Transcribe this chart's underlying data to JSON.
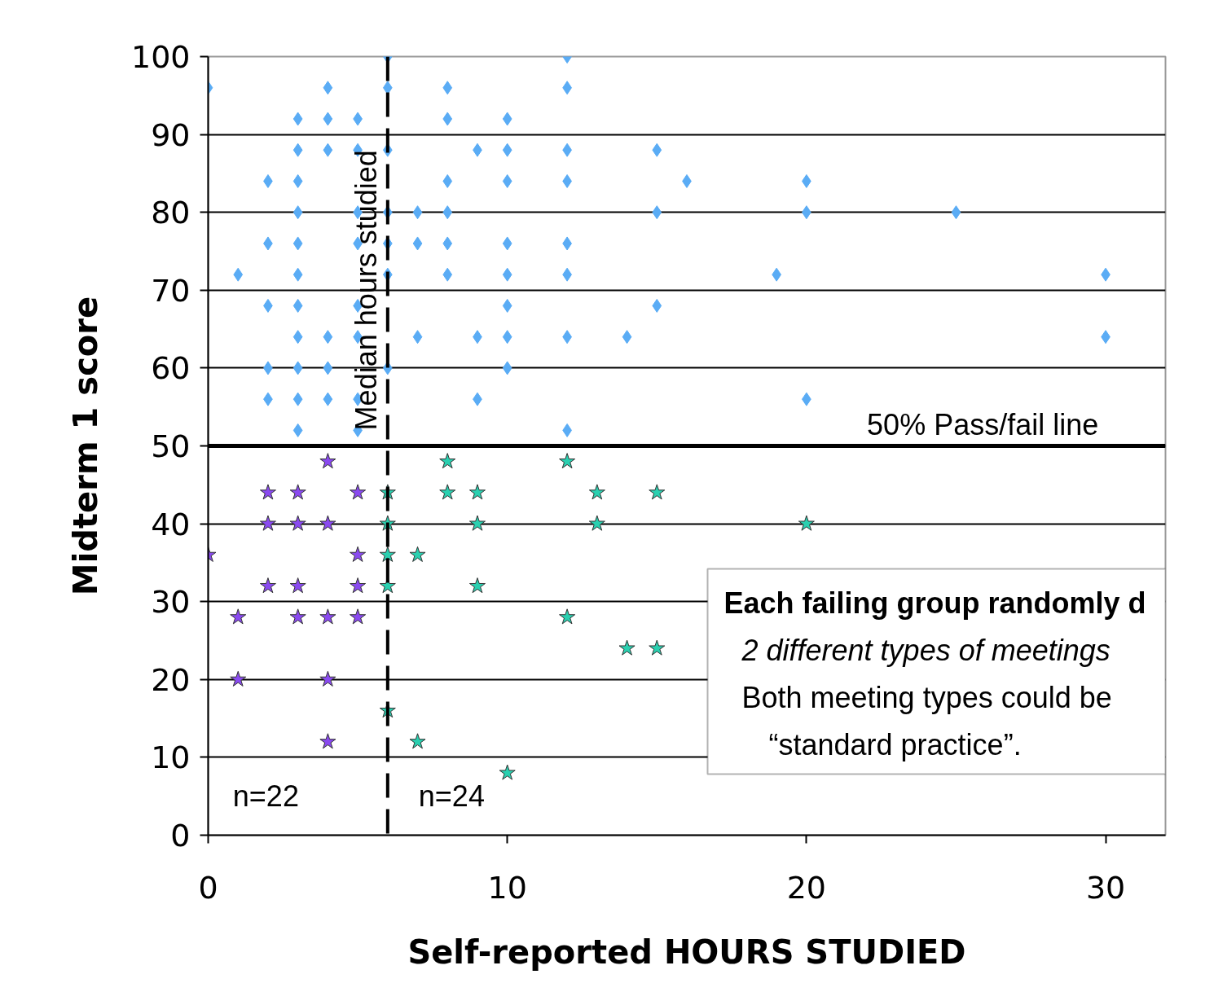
{
  "chart_data": {
    "type": "scatter",
    "xlabel": "Self-reported HOURS STUDIED",
    "ylabel": "Midterm 1 score",
    "xlim": [
      0,
      32
    ],
    "xticks": [
      0,
      10,
      20,
      30
    ],
    "ylim": [
      0,
      100
    ],
    "yticks": [
      0,
      10,
      20,
      30,
      40,
      50,
      60,
      70,
      80,
      90,
      100
    ],
    "grid": "y",
    "series": [
      {
        "color": "#5aacf5",
        "marker": "diamond",
        "x": [
          0,
          1,
          2,
          2,
          2,
          2,
          2,
          3,
          3,
          3,
          3,
          3,
          3,
          3,
          3,
          3,
          3,
          3,
          4,
          4,
          4,
          4,
          4,
          4,
          5,
          5,
          5,
          5,
          5,
          5,
          5,
          5,
          6,
          6,
          6,
          6,
          6,
          6,
          6,
          7,
          7,
          7,
          8,
          8,
          8,
          8,
          8,
          8,
          9,
          9,
          9,
          10,
          10,
          10,
          10,
          10,
          10,
          10,
          10,
          12,
          12,
          12,
          12,
          12,
          12,
          12,
          12,
          14,
          15,
          15,
          15,
          16,
          19,
          20,
          20,
          20,
          25,
          30,
          30
        ],
        "values": [
          96,
          72,
          84,
          76,
          68,
          60,
          56,
          92,
          88,
          84,
          80,
          76,
          72,
          68,
          64,
          60,
          56,
          52,
          96,
          92,
          88,
          64,
          60,
          56,
          92,
          88,
          80,
          76,
          68,
          64,
          56,
          52,
          100,
          96,
          88,
          80,
          76,
          72,
          60,
          80,
          76,
          64,
          96,
          92,
          84,
          80,
          76,
          72,
          88,
          64,
          56,
          92,
          88,
          84,
          76,
          72,
          68,
          64,
          60,
          100,
          96,
          88,
          84,
          76,
          72,
          64,
          52,
          64,
          88,
          80,
          68,
          84,
          72,
          84,
          80,
          56,
          80,
          72,
          64
        ]
      },
      {
        "color": "#8a4af0",
        "marker": "star",
        "x": [
          0,
          1,
          1,
          2,
          2,
          2,
          3,
          3,
          3,
          3,
          4,
          4,
          4,
          4,
          4,
          5,
          5,
          5,
          5
        ],
        "values": [
          36,
          28,
          20,
          44,
          40,
          32,
          44,
          40,
          32,
          28,
          48,
          40,
          28,
          20,
          12,
          44,
          36,
          32,
          28
        ]
      },
      {
        "color": "#2ad0b0",
        "marker": "star",
        "x": [
          6,
          6,
          6,
          6,
          6,
          7,
          7,
          8,
          8,
          9,
          9,
          9,
          10,
          12,
          12,
          13,
          13,
          14,
          15,
          15,
          20
        ],
        "values": [
          44,
          40,
          36,
          32,
          16,
          36,
          12,
          48,
          44,
          44,
          40,
          32,
          8,
          48,
          28,
          44,
          40,
          24,
          44,
          24,
          40
        ]
      }
    ],
    "ref_lines": [
      {
        "axis": "y",
        "value": 50,
        "label": "50% Pass/fail line",
        "color": "#000000",
        "line_style": "solid"
      },
      {
        "axis": "x",
        "value": 6,
        "label": "Median hours studied",
        "color": "#000000",
        "line_style": "dashed"
      }
    ],
    "annotations": [
      "n=22",
      "n=24",
      "Each failing group randomly d",
      "2 different types of meetings",
      "Both meeting types could be",
      "“standard practice”."
    ]
  }
}
